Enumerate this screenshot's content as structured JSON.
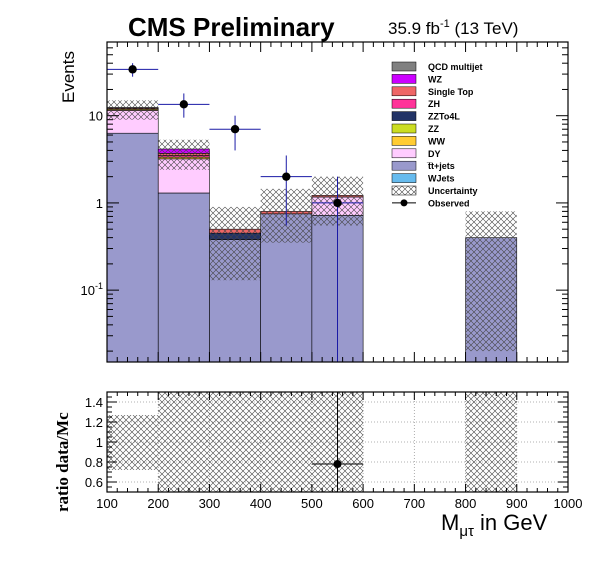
{
  "chart_data": {
    "type": "bar",
    "title": "CMS Preliminary",
    "lumi_label": "35.9 fb",
    "lumi_sup": "-1",
    "lumi_energy": " (13 TeV)",
    "xlabel_main": "M",
    "xlabel_sub": "μτ",
    "xlabel_unit": " in GeV",
    "ylabel_top": "Events",
    "ylabel_ratio": "ratio data/Mc",
    "x_range": [
      100,
      1000
    ],
    "y_range": [
      0.015,
      70
    ],
    "y_scale": "log",
    "ratio_range": [
      0.5,
      1.5
    ],
    "x_ticks": [
      "100",
      "200",
      "300",
      "400",
      "500",
      "600",
      "700",
      "800",
      "900",
      "1000"
    ],
    "y_ticks": [
      {
        "value": 10,
        "base": "10",
        "exp": ""
      },
      {
        "value": 1,
        "base": "1",
        "exp": ""
      },
      {
        "value": 0.1,
        "base": "10",
        "exp": "-1"
      }
    ],
    "ratio_ticks": [
      "0.6",
      "0.8",
      "1",
      "1.2",
      "1.4"
    ],
    "bin_edges": [
      100,
      200,
      300,
      400,
      500,
      600,
      700,
      800,
      900,
      1000
    ],
    "series": [
      {
        "name": "t̅t+jets",
        "color": "#9999cc",
        "values": [
          6.3,
          1.3,
          0.38,
          0.75,
          0.72,
          0,
          0,
          0.4,
          0
        ]
      },
      {
        "name": "DY",
        "color": "#ffccff",
        "values": [
          5.2,
          1.9,
          0,
          0,
          0.45,
          0,
          0,
          0,
          0
        ]
      },
      {
        "name": "WW",
        "color": "#ffcc33",
        "values": [
          0.35,
          0.15,
          0,
          0,
          0,
          0,
          0,
          0,
          0
        ]
      },
      {
        "name": "ZZTo4L",
        "color": "#223366",
        "values": [
          0,
          0,
          0.07,
          0,
          0,
          0,
          0,
          0,
          0
        ]
      },
      {
        "name": "ZH",
        "color": "#ff3399",
        "values": [
          0.1,
          0.15,
          0,
          0,
          0,
          0,
          0,
          0,
          0
        ]
      },
      {
        "name": "Single Top",
        "color": "#ee6666",
        "values": [
          0.3,
          0.2,
          0.05,
          0.05,
          0.05,
          0,
          0,
          0,
          0
        ]
      },
      {
        "name": "WZ",
        "color": "#cc00ff",
        "values": [
          0.15,
          0.45,
          0,
          0,
          0,
          0,
          0,
          0,
          0
        ]
      }
    ],
    "legend": [
      {
        "name": "QCD multijet",
        "color": "#808080",
        "kind": "box"
      },
      {
        "name": "WZ",
        "color": "#cc00ff",
        "kind": "box"
      },
      {
        "name": "Single Top",
        "color": "#ee6666",
        "kind": "box"
      },
      {
        "name": "ZH",
        "color": "#ff3399",
        "kind": "box"
      },
      {
        "name": "ZZTo4L",
        "color": "#223366",
        "kind": "box"
      },
      {
        "name": "ZZ",
        "color": "#ccdd22",
        "kind": "box"
      },
      {
        "name": "WW",
        "color": "#ffcc33",
        "kind": "box"
      },
      {
        "name": "DY",
        "color": "#ffccff",
        "kind": "box"
      },
      {
        "name": "t̅t+jets",
        "color": "#9999cc",
        "kind": "box"
      },
      {
        "name": "WJets",
        "color": "#66bbee",
        "kind": "box"
      },
      {
        "name": "Uncertainty",
        "color": "#555555",
        "kind": "hatch"
      },
      {
        "name": "Observed",
        "color": "#000000",
        "kind": "marker"
      }
    ],
    "uncertainty": [
      {
        "low": 9.0,
        "high": 15.0
      },
      {
        "low": 2.4,
        "high": 5.3
      },
      {
        "low": 0.13,
        "high": 0.9
      },
      {
        "low": 0.35,
        "high": 1.45
      },
      {
        "low": 0.55,
        "high": 2.0
      },
      null,
      null,
      {
        "low": 0.02,
        "high": 0.8
      },
      null
    ],
    "observed": [
      {
        "x": 150,
        "y": 34,
        "y_low": 28,
        "y_high": 40
      },
      {
        "x": 250,
        "y": 13.5,
        "y_low": 9.5,
        "y_high": 18
      },
      {
        "x": 350,
        "y": 7,
        "y_low": 4,
        "y_high": 10
      },
      {
        "x": 450,
        "y": 2,
        "y_low": 0.55,
        "y_high": 3.5
      },
      {
        "x": 550,
        "y": 1,
        "y_low": 0.015,
        "y_high": 2.0
      }
    ],
    "ratio_uncertainty": [
      {
        "low": 0.72,
        "high": 1.27
      },
      {
        "low": 0.5,
        "high": 1.5
      },
      {
        "low": 0.5,
        "high": 1.5
      },
      {
        "low": 0.5,
        "high": 1.5
      },
      {
        "low": 0.5,
        "high": 1.5
      },
      null,
      null,
      {
        "low": 0.5,
        "high": 1.5
      },
      null
    ],
    "ratio_points": [
      {
        "x": 550,
        "y": 0.78,
        "y_low": 0.5,
        "y_high": 1.5
      }
    ],
    "grid": "ratio-dotted"
  }
}
